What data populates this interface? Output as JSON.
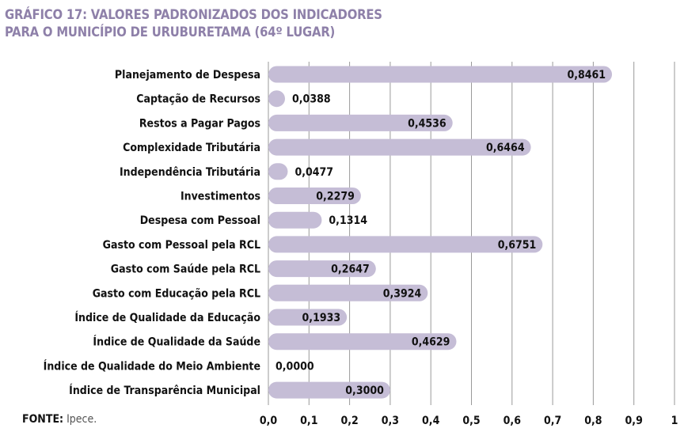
{
  "title_line1": "GRÁFICO 17: VALORES PADRONIZADOS DOS INDICADORES",
  "title_line2": "PARA O MUNICÍPIO DE URUBURETAMA (64º LUGAR)",
  "source_label": "FONTE:",
  "source_value": "Ipece.",
  "colors": {
    "title": "#8e80a9",
    "bar": "#c5bdd6",
    "grid": "#9a9a9a"
  },
  "chart_data": {
    "type": "bar",
    "orientation": "horizontal",
    "categories": [
      "Planejamento de Despesa",
      "Captação de Recursos",
      "Restos a Pagar Pagos",
      "Complexidade Tributária",
      "Independência Tributária",
      "Investimentos",
      "Despesa com Pessoal",
      "Gasto com Pessoal pela RCL",
      "Gasto com Saúde pela RCL",
      "Gasto com Educação pela RCL",
      "Índice de Qualidade da Educação",
      "Índice de Qualidade da Saúde",
      "Índice de Qualidade do Meio Ambiente",
      "Índice de Transparência Municipal"
    ],
    "values": [
      0.8461,
      0.0388,
      0.4536,
      0.6464,
      0.0477,
      0.2279,
      0.1314,
      0.6751,
      0.2647,
      0.3924,
      0.1933,
      0.4629,
      0.0,
      0.3
    ],
    "data_labels": [
      "0,8461",
      "0,0388",
      "0,4536",
      "0,6464",
      "0,0477",
      "0,2279",
      "0,1314",
      "0,6751",
      "0,2647",
      "0,3924",
      "0,1933",
      "0,4629",
      "0,0000",
      "0,3000"
    ],
    "xlim": [
      0,
      1
    ],
    "ticks": [
      0,
      0.1,
      0.2,
      0.3,
      0.4,
      0.5,
      0.6,
      0.7,
      0.8,
      0.9,
      1
    ],
    "tick_labels": [
      "0,0",
      "0,1",
      "0,2",
      "0,3",
      "0,4",
      "0,5",
      "0,6",
      "0,7",
      "0,8",
      "0,9",
      "1"
    ],
    "grid": true,
    "legend": "none"
  }
}
